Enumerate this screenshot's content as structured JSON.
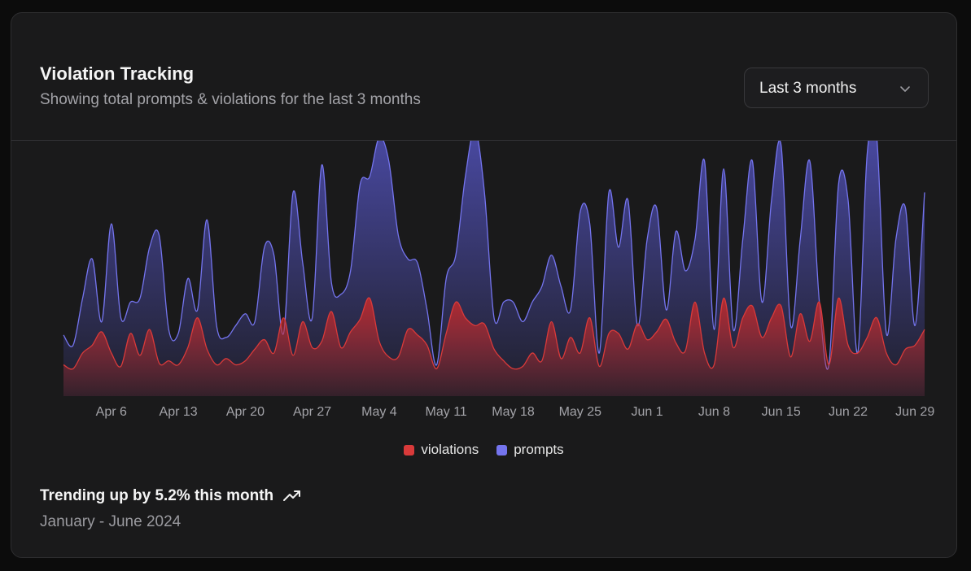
{
  "header": {
    "title": "Violation Tracking",
    "subtitle": "Showing total prompts & violations for the last 3 months",
    "range_select": "Last 3 months"
  },
  "colors": {
    "violations": "#d93a3a",
    "prompts": "#7474ee"
  },
  "chart_data": {
    "type": "area",
    "title": "Violation Tracking",
    "xlabel": "",
    "ylabel": "",
    "ylim": [
      0,
      300
    ],
    "grid": false,
    "legend_position": "bottom-center",
    "x": [
      "Apr 1",
      "Apr 2",
      "Apr 3",
      "Apr 4",
      "Apr 5",
      "Apr 6",
      "Apr 7",
      "Apr 8",
      "Apr 9",
      "Apr 10",
      "Apr 11",
      "Apr 12",
      "Apr 13",
      "Apr 14",
      "Apr 15",
      "Apr 16",
      "Apr 17",
      "Apr 18",
      "Apr 19",
      "Apr 20",
      "Apr 21",
      "Apr 22",
      "Apr 23",
      "Apr 24",
      "Apr 25",
      "Apr 26",
      "Apr 27",
      "Apr 28",
      "Apr 29",
      "Apr 30",
      "May 1",
      "May 2",
      "May 3",
      "May 4",
      "May 5",
      "May 6",
      "May 7",
      "May 8",
      "May 9",
      "May 10",
      "May 11",
      "May 12",
      "May 13",
      "May 14",
      "May 15",
      "May 16",
      "May 17",
      "May 18",
      "May 19",
      "May 20",
      "May 21",
      "May 22",
      "May 23",
      "May 24",
      "May 25",
      "May 26",
      "May 27",
      "May 28",
      "May 29",
      "May 30",
      "May 31",
      "Jun 1",
      "Jun 2",
      "Jun 3",
      "Jun 4",
      "Jun 5",
      "Jun 6",
      "Jun 7",
      "Jun 8",
      "Jun 9",
      "Jun 10",
      "Jun 11",
      "Jun 12",
      "Jun 13",
      "Jun 14",
      "Jun 15",
      "Jun 16",
      "Jun 17",
      "Jun 18",
      "Jun 19",
      "Jun 20",
      "Jun 21",
      "Jun 22",
      "Jun 23",
      "Jun 24",
      "Jun 25",
      "Jun 26",
      "Jun 27",
      "Jun 28",
      "Jun 29",
      "Jun 30"
    ],
    "tick_labels": [
      "Apr 6",
      "Apr 13",
      "Apr 20",
      "Apr 27",
      "May 4",
      "May 11",
      "May 18",
      "May 25",
      "Jun 1",
      "Jun 8",
      "Jun 15",
      "Jun 22",
      "Jun 29"
    ],
    "series": [
      {
        "name": "violations",
        "values": [
          40,
          35,
          55,
          65,
          82,
          55,
          38,
          80,
          52,
          85,
          42,
          45,
          40,
          62,
          100,
          60,
          40,
          48,
          40,
          45,
          60,
          72,
          55,
          100,
          52,
          95,
          62,
          70,
          108,
          62,
          82,
          98,
          125,
          70,
          50,
          50,
          85,
          78,
          65,
          35,
          80,
          120,
          100,
          90,
          92,
          60,
          45,
          35,
          38,
          55,
          45,
          95,
          48,
          75,
          55,
          100,
          38,
          80,
          80,
          60,
          92,
          72,
          82,
          98,
          68,
          58,
          120,
          55,
          40,
          125,
          62,
          100,
          115,
          75,
          100,
          115,
          50,
          105,
          70,
          120,
          40,
          125,
          65,
          55,
          75,
          100,
          55,
          40,
          60,
          65,
          85
        ]
      },
      {
        "name": "prompts",
        "values": [
          78,
          65,
          125,
          175,
          95,
          220,
          100,
          120,
          125,
          190,
          205,
          85,
          80,
          150,
          110,
          225,
          90,
          75,
          90,
          105,
          95,
          190,
          180,
          80,
          260,
          170,
          100,
          295,
          145,
          130,
          160,
          270,
          280,
          330,
          300,
          205,
          175,
          170,
          110,
          40,
          150,
          180,
          280,
          340,
          260,
          100,
          120,
          120,
          95,
          120,
          140,
          180,
          140,
          110,
          235,
          220,
          55,
          260,
          190,
          250,
          90,
          200,
          240,
          110,
          210,
          160,
          200,
          300,
          85,
          290,
          85,
          200,
          300,
          120,
          250,
          320,
          90,
          200,
          300,
          120,
          40,
          270,
          250,
          55,
          310,
          330,
          80,
          200,
          240,
          90,
          260
        ]
      }
    ]
  },
  "footer": {
    "trend_text": "Trending up by 5.2% this month",
    "date_range": "January - June 2024"
  }
}
